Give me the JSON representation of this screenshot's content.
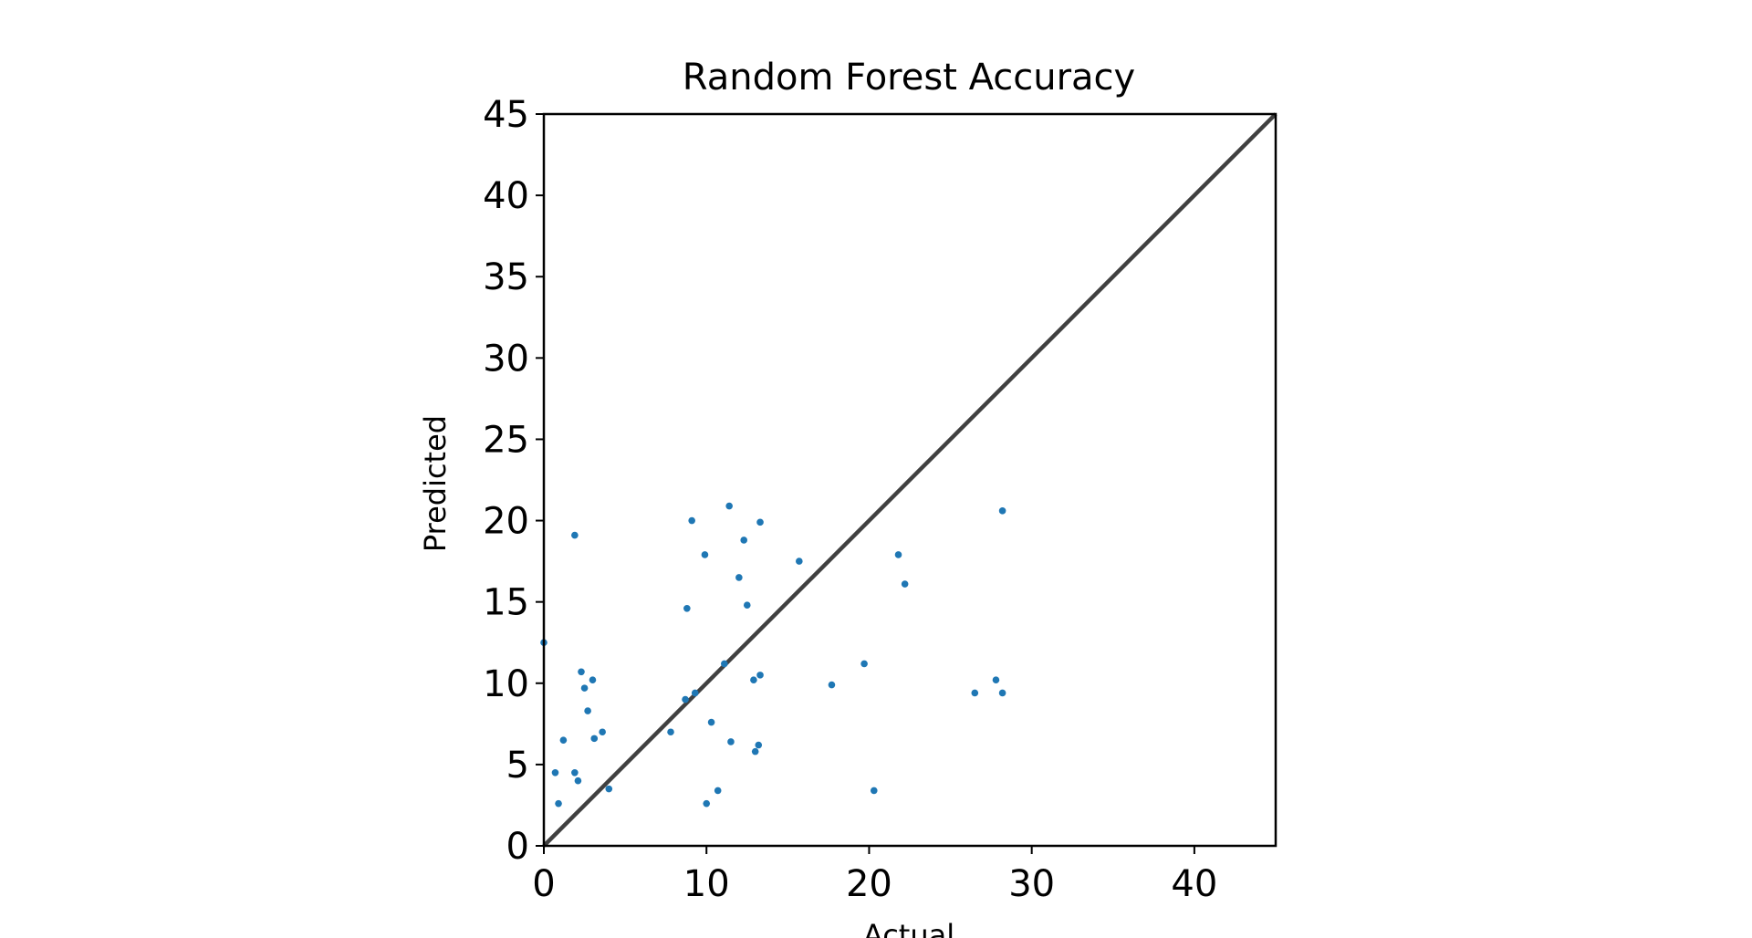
{
  "chart_data": {
    "type": "scatter",
    "title": "Random Forest Accuracy",
    "xlabel": "Actual",
    "ylabel": "Predicted",
    "xlim": [
      0,
      45
    ],
    "ylim": [
      0,
      45
    ],
    "xticks": [
      0,
      10,
      20,
      30,
      40
    ],
    "yticks": [
      0,
      5,
      10,
      15,
      20,
      25,
      30,
      35,
      40,
      45
    ],
    "grid": false,
    "legend": "none",
    "point_color": "#1f77b4",
    "reference_line": {
      "from": [
        0,
        0
      ],
      "to": [
        45,
        45
      ],
      "color": "#404040"
    },
    "points": [
      [
        0.0,
        12.5
      ],
      [
        0.7,
        4.5
      ],
      [
        0.9,
        2.6
      ],
      [
        1.2,
        6.5
      ],
      [
        1.9,
        4.5
      ],
      [
        1.9,
        19.1
      ],
      [
        2.1,
        4.0
      ],
      [
        2.3,
        10.7
      ],
      [
        2.5,
        9.7
      ],
      [
        2.7,
        8.3
      ],
      [
        3.0,
        10.2
      ],
      [
        3.1,
        6.6
      ],
      [
        3.6,
        7.0
      ],
      [
        4.0,
        3.5
      ],
      [
        7.8,
        7.0
      ],
      [
        8.7,
        9.0
      ],
      [
        8.8,
        14.6
      ],
      [
        9.1,
        20.0
      ],
      [
        9.3,
        9.4
      ],
      [
        9.9,
        17.9
      ],
      [
        10.0,
        2.6
      ],
      [
        10.3,
        7.6
      ],
      [
        10.7,
        3.4
      ],
      [
        11.1,
        11.2
      ],
      [
        11.4,
        20.9
      ],
      [
        11.5,
        6.4
      ],
      [
        12.0,
        16.5
      ],
      [
        12.3,
        18.8
      ],
      [
        12.5,
        14.8
      ],
      [
        12.9,
        10.2
      ],
      [
        13.0,
        5.8
      ],
      [
        13.2,
        6.2
      ],
      [
        13.3,
        10.5
      ],
      [
        13.3,
        19.9
      ],
      [
        15.7,
        17.5
      ],
      [
        17.7,
        9.9
      ],
      [
        19.7,
        11.2
      ],
      [
        20.3,
        3.4
      ],
      [
        21.8,
        17.9
      ],
      [
        22.2,
        16.1
      ],
      [
        26.5,
        9.4
      ],
      [
        27.8,
        10.2
      ],
      [
        28.2,
        9.4
      ],
      [
        28.2,
        20.6
      ]
    ]
  }
}
